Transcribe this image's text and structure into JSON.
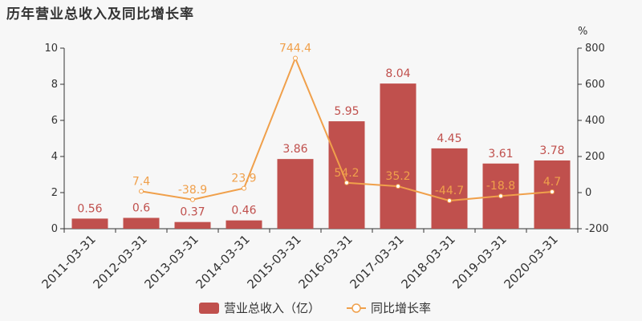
{
  "chart_data": {
    "type": "bar",
    "title": "历年营业总收入及同比增长率",
    "categories": [
      "2011-03-31",
      "2012-03-31",
      "2013-03-31",
      "2014-03-31",
      "2015-03-31",
      "2016-03-31",
      "2017-03-31",
      "2018-03-31",
      "2019-03-31",
      "2020-03-31"
    ],
    "series": [
      {
        "name": "营业总收入（亿）",
        "type": "bar",
        "axis": "left",
        "color": "#c0504d",
        "values": [
          0.56,
          0.6,
          0.37,
          0.46,
          3.86,
          5.95,
          8.04,
          4.45,
          3.61,
          3.78
        ],
        "labels": [
          "0.56",
          "0.6",
          "0.37",
          "0.46",
          "3.86",
          "5.95",
          "8.04",
          "4.45",
          "3.61",
          "3.78"
        ]
      },
      {
        "name": "同比增长率",
        "type": "line",
        "axis": "right",
        "color": "#f0a04b",
        "values": [
          null,
          7.4,
          -38.9,
          23.9,
          744.4,
          54.2,
          35.2,
          -44.7,
          -18.8,
          4.7
        ],
        "labels": [
          "",
          "7.4",
          "-38.9",
          "23.9",
          "744.4",
          "54.2",
          "35.2",
          "-44.7",
          "-18.8",
          "4.7"
        ]
      }
    ],
    "yleft": {
      "ylim": [
        0,
        10
      ],
      "ticks": [
        "0",
        "2",
        "4",
        "6",
        "8",
        "10"
      ]
    },
    "yright": {
      "label": "%",
      "ylim": [
        -200,
        800
      ],
      "ticks": [
        "-200",
        "0",
        "200",
        "400",
        "600",
        "800"
      ]
    },
    "legend": "bottom-center",
    "grid": false
  }
}
